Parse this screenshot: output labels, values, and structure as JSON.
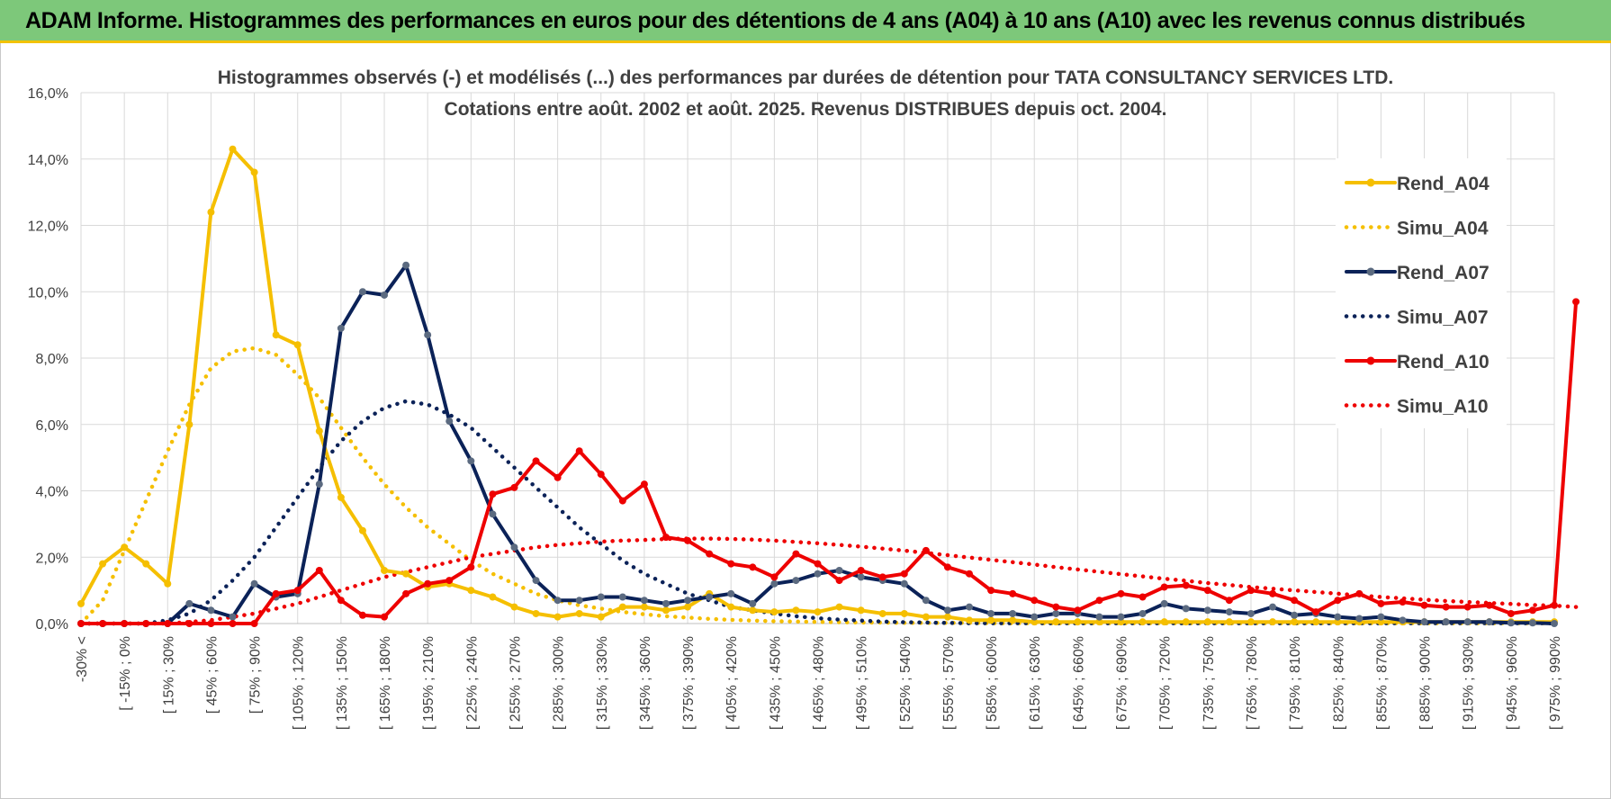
{
  "header": {
    "title": "ADAM Informe. Histogrammes des performances en euros pour des détentions de 4 ans (A04) à 10 ans (A10) avec les revenus connus distribués"
  },
  "colors": {
    "banner": "#7dc87a",
    "accent_line": "#f2c200",
    "a04": "#f5bf00",
    "a07": "#0b2258",
    "a10": "#ee0000",
    "marker_a07": "#5b6a80",
    "grid": "#d9d9d9"
  },
  "chart_data": {
    "type": "line",
    "title": "Histogrammes observés (-) et modélisés (...) des performances par durées de détention pour TATA  CONSULTANCY SERVICES LTD.",
    "subtitle": "Cotations entre août. 2002 et août. 2025.  Revenus DISTRIBUES depuis oct. 2004.",
    "xlabel": "",
    "ylabel": "",
    "ylim": [
      0,
      16
    ],
    "y_ticks": [
      "0,0%",
      "2,0%",
      "4,0%",
      "6,0%",
      "8,0%",
      "10,0%",
      "12,0%",
      "14,0%",
      "16,0%"
    ],
    "grid": true,
    "legend_position": "top-right",
    "x_tick_labels": [
      "-30% <",
      "[ -15% ; 0%",
      "[ 15% ; 30%",
      "[ 45% ; 60%",
      "[ 75% ; 90%",
      "[ 105% ; 120%",
      "[ 135% ; 150%",
      "[ 165% ; 180%",
      "[ 195% ; 210%",
      "[ 225% ; 240%",
      "[ 255% ; 270%",
      "[ 285% ; 300%",
      "[ 315% ; 330%",
      "[ 345% ; 360%",
      "[ 375% ; 390%",
      "[ 405% ; 420%",
      "[ 435% ; 450%",
      "[ 465% ; 480%",
      "[ 495% ; 510%",
      "[ 525% ; 540%",
      "[ 555% ; 570%",
      "[ 585% ; 600%",
      "[ 615% ; 630%",
      "[ 645% ; 660%",
      "[ 675% ; 690%",
      "[ 705% ; 720%",
      "[ 735% ; 750%",
      "[ 765% ; 780%",
      "[ 795% ; 810%",
      "[ 825% ; 840%",
      "[ 855% ; 870%",
      "[ 885% ; 900%",
      "[ 915% ; 930%",
      "[ 945% ; 960%",
      "[ 975% ; 990%"
    ],
    "series": [
      {
        "name": "Rend_A04",
        "style": "solid",
        "color": "#f5bf00",
        "marker": true,
        "values": [
          0.6,
          1.8,
          2.3,
          1.8,
          1.2,
          6.0,
          12.4,
          14.3,
          13.6,
          8.7,
          8.4,
          5.8,
          3.8,
          2.8,
          1.6,
          1.5,
          1.1,
          1.2,
          1.0,
          0.8,
          0.5,
          0.3,
          0.2,
          0.3,
          0.2,
          0.5,
          0.5,
          0.4,
          0.5,
          0.9,
          0.5,
          0.4,
          0.35,
          0.4,
          0.35,
          0.5,
          0.4,
          0.3,
          0.3,
          0.2,
          0.2,
          0.1,
          0.1,
          0.1,
          0.05,
          0.05,
          0.05,
          0.05,
          0.05,
          0.05,
          0.05,
          0.05,
          0.05,
          0.05,
          0.05,
          0.05,
          0.05,
          0.05,
          0.05,
          0.05,
          0.05,
          0.05,
          0.05,
          0.05,
          0.05,
          0.05,
          0.05,
          0.05,
          0.05
        ]
      },
      {
        "name": "Simu_A04",
        "style": "dotted",
        "color": "#f5bf00",
        "marker": false,
        "values": [
          0.0,
          0.7,
          2.2,
          3.7,
          5.2,
          6.6,
          7.7,
          8.2,
          8.3,
          8.1,
          7.5,
          6.8,
          5.9,
          5.0,
          4.2,
          3.5,
          2.9,
          2.4,
          1.9,
          1.5,
          1.2,
          0.9,
          0.7,
          0.55,
          0.45,
          0.35,
          0.28,
          0.22,
          0.18,
          0.14,
          0.11,
          0.09,
          0.07,
          0.06,
          0.05,
          0.04,
          0.03,
          0.03,
          0.02,
          0.02,
          0.02,
          0.02,
          0.01,
          0.01,
          0.01,
          0.01,
          0.01,
          0.01,
          0.01,
          0.01,
          0.01,
          0.01,
          0.01,
          0.01,
          0.01,
          0.01,
          0.01,
          0.01,
          0.01,
          0.01,
          0.01,
          0.01,
          0.01,
          0.01,
          0.01,
          0.01,
          0.01,
          0.01,
          0.01
        ]
      },
      {
        "name": "Rend_A07",
        "style": "solid",
        "color": "#0b2258",
        "marker": true,
        "values": [
          0.0,
          0.0,
          0.0,
          0.0,
          0.0,
          0.6,
          0.4,
          0.2,
          1.2,
          0.8,
          0.9,
          4.2,
          8.9,
          10.0,
          9.9,
          10.8,
          8.7,
          6.1,
          4.9,
          3.3,
          2.3,
          1.3,
          0.7,
          0.7,
          0.8,
          0.8,
          0.7,
          0.6,
          0.7,
          0.8,
          0.9,
          0.6,
          1.2,
          1.3,
          1.5,
          1.6,
          1.4,
          1.3,
          1.2,
          0.7,
          0.4,
          0.5,
          0.3,
          0.3,
          0.2,
          0.3,
          0.3,
          0.2,
          0.2,
          0.3,
          0.6,
          0.45,
          0.4,
          0.35,
          0.3,
          0.5,
          0.25,
          0.3,
          0.2,
          0.15,
          0.2,
          0.1,
          0.05,
          0.05,
          0.05,
          0.05,
          0.02,
          0.02,
          0.0
        ]
      },
      {
        "name": "Simu_A07",
        "style": "dotted",
        "color": "#0b2258",
        "marker": false,
        "values": [
          0.0,
          0.0,
          0.0,
          0.0,
          0.1,
          0.3,
          0.7,
          1.3,
          2.0,
          2.9,
          3.8,
          4.7,
          5.5,
          6.1,
          6.5,
          6.7,
          6.6,
          6.3,
          5.9,
          5.3,
          4.7,
          4.1,
          3.5,
          2.9,
          2.4,
          1.9,
          1.5,
          1.2,
          0.9,
          0.7,
          0.5,
          0.4,
          0.3,
          0.22,
          0.16,
          0.12,
          0.09,
          0.06,
          0.04,
          0.03,
          0.02,
          0.01,
          0.01,
          0.01,
          0.01,
          0.01,
          0.01,
          0.01,
          0.01,
          0.01,
          0.01,
          0.01,
          0.01,
          0.01,
          0.01,
          0.01,
          0.01,
          0.01,
          0.01,
          0.01,
          0.01,
          0.01,
          0.01,
          0.01,
          0.01,
          0.01,
          0.01,
          0.01,
          0.01
        ]
      },
      {
        "name": "Rend_A10",
        "style": "solid",
        "color": "#ee0000",
        "marker": true,
        "values": [
          0.0,
          0.0,
          0.0,
          0.0,
          0.0,
          0.0,
          0.0,
          0.0,
          0.0,
          0.9,
          1.0,
          1.6,
          0.7,
          0.25,
          0.2,
          0.9,
          1.2,
          1.3,
          1.7,
          3.9,
          4.1,
          4.9,
          4.4,
          5.2,
          4.5,
          3.7,
          4.2,
          2.6,
          2.5,
          2.1,
          1.8,
          1.7,
          1.4,
          2.1,
          1.8,
          1.3,
          1.6,
          1.4,
          1.5,
          2.2,
          1.7,
          1.5,
          1.0,
          0.9,
          0.7,
          0.5,
          0.4,
          0.7,
          0.9,
          0.8,
          1.1,
          1.15,
          1.0,
          0.7,
          1.0,
          0.9,
          0.7,
          0.35,
          0.7,
          0.9,
          0.6,
          0.65,
          0.55,
          0.5,
          0.5,
          0.55,
          0.3,
          0.4,
          0.55,
          9.7
        ]
      },
      {
        "name": "Simu_A10",
        "style": "dotted",
        "color": "#ee0000",
        "marker": false,
        "values": [
          0.0,
          0.0,
          0.0,
          0.0,
          0.0,
          0.05,
          0.1,
          0.2,
          0.3,
          0.45,
          0.6,
          0.8,
          1.0,
          1.2,
          1.4,
          1.55,
          1.7,
          1.85,
          2.0,
          2.1,
          2.2,
          2.3,
          2.37,
          2.42,
          2.47,
          2.5,
          2.52,
          2.55,
          2.56,
          2.56,
          2.55,
          2.53,
          2.5,
          2.46,
          2.42,
          2.37,
          2.32,
          2.26,
          2.2,
          2.13,
          2.06,
          1.99,
          1.92,
          1.85,
          1.78,
          1.7,
          1.63,
          1.56,
          1.49,
          1.42,
          1.35,
          1.29,
          1.22,
          1.16,
          1.1,
          1.05,
          1.0,
          0.95,
          0.9,
          0.85,
          0.8,
          0.76,
          0.72,
          0.68,
          0.65,
          0.62,
          0.59,
          0.56,
          0.54,
          0.5
        ]
      }
    ]
  }
}
